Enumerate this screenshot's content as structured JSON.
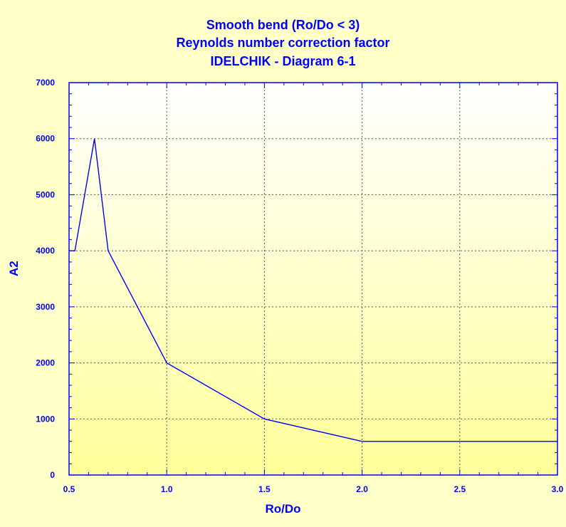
{
  "chart_data": {
    "type": "line",
    "title": [
      "Smooth bend (Ro/Do < 3)",
      "Reynolds number correction factor",
      "IDELCHIK - Diagram 6-1"
    ],
    "xlabel": "Ro/Do",
    "ylabel": "A2",
    "xlim": [
      0.5,
      3.0
    ],
    "ylim": [
      0,
      7000
    ],
    "xticks": [
      "0.5",
      "1.0",
      "1.5",
      "2.0",
      "2.5",
      "3.0"
    ],
    "xtick_values": [
      0.5,
      1.0,
      1.5,
      2.0,
      2.5,
      3.0
    ],
    "yticks": [
      "0",
      "1000",
      "2000",
      "3000",
      "4000",
      "5000",
      "6000",
      "7000"
    ],
    "ytick_values": [
      0,
      1000,
      2000,
      3000,
      4000,
      5000,
      6000,
      7000
    ],
    "grid": true,
    "series": [
      {
        "color": "#0000ff",
        "x": [
          0.5,
          0.53,
          0.63,
          0.7,
          1.0,
          1.5,
          2.0,
          3.0
        ],
        "y": [
          4000,
          4000,
          6000,
          4000,
          2000,
          1000,
          600,
          600
        ]
      }
    ]
  }
}
